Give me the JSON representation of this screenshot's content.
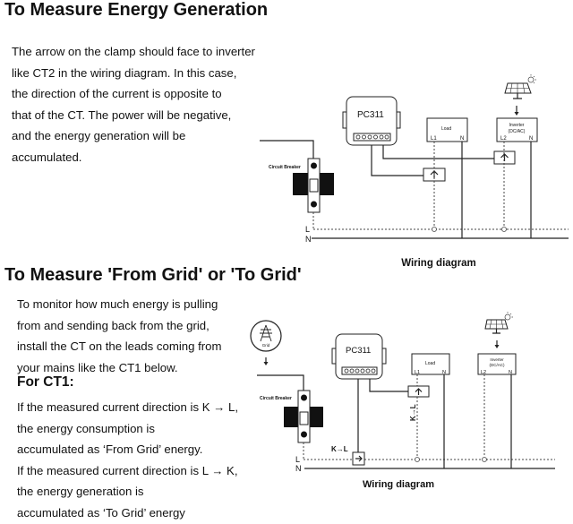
{
  "section1": {
    "title": "To Measure Energy Generation",
    "lines": [
      "The arrow on the clamp should face to inverter",
      "like CT2 in the wiring diagram. In this case,",
      "the direction of the current is opposite to",
      "that of the CT. The power will be negative,",
      "and the energy generation will be",
      "accumulated."
    ],
    "diagram": {
      "device": "PC311",
      "breaker_label": "Circuit Breaker",
      "load": "Load",
      "inverter": [
        "Inverter",
        "(DC/AC)"
      ],
      "terminals": {
        "l1": "L1",
        "l2": "L2",
        "n": "N"
      },
      "line_labels": {
        "l": "L",
        "n": "N"
      },
      "caption": "Wiring diagram"
    }
  },
  "section2": {
    "title": "To Measure 'From Grid' or 'To Grid'",
    "intro_lines": [
      "To monitor how much energy is pulling",
      "from and sending back from the grid,",
      "install the CT on the leads coming from",
      "your mains like the CT1 below."
    ],
    "subheading": "For CT1:",
    "ct1_lines": [
      "If the measured current direction is K → L,",
      "the energy consumption is",
      "accumulated as ‘From Grid’ energy.",
      "If the measured current direction is L → K,",
      "the energy generation is",
      "accumulated as ‘To Grid’ energy"
    ],
    "diagram": {
      "device": "PC311",
      "grid_label": "Grid",
      "breaker_label": "Circuit Breaker",
      "load": "Load",
      "inverter": [
        "Inverter",
        "(DC/AC)"
      ],
      "terminals": {
        "l1": "L1",
        "l2": "L2",
        "n": "N"
      },
      "line_labels": {
        "l": "L",
        "n": "N"
      },
      "ct_direction": "K→L",
      "caption": "Wiring diagram"
    }
  }
}
